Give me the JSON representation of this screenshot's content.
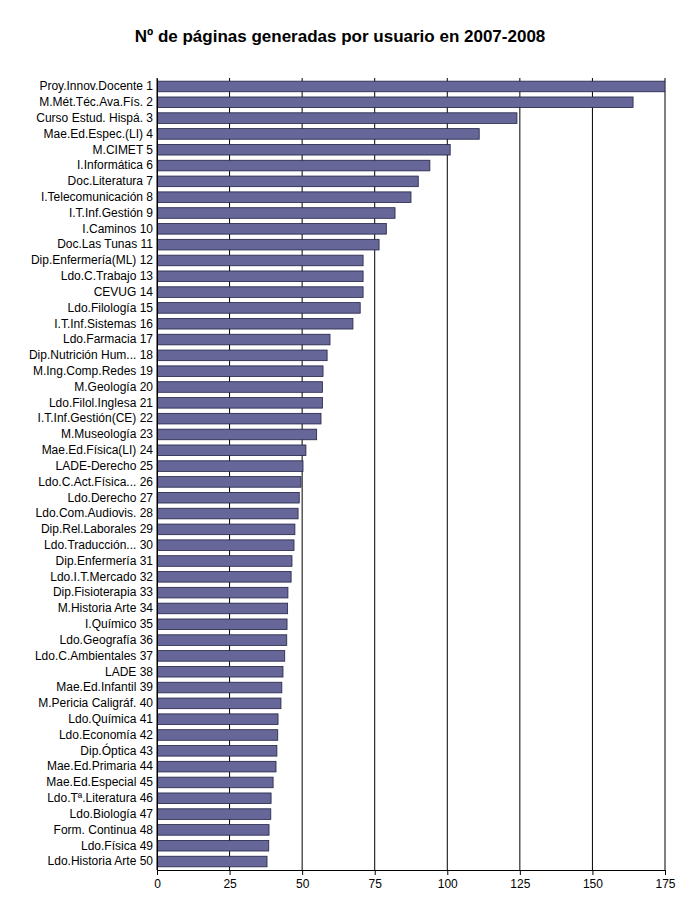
{
  "chart_data": {
    "type": "bar",
    "orientation": "horizontal",
    "title": "Nº de páginas generadas por usuario en 2007-2008",
    "categories": [
      "Proy.Innov.Docente  1",
      "M.Mét.Téc.Ava.Fís.  2",
      "Curso Estud. Hispá.  3",
      "Mae.Ed.Espec.(LI)  4",
      "M.CIMET  5",
      "I.Informática  6",
      "Doc.Literatura  7",
      "I.Telecomunicación  8",
      "I.T.Inf.Gestión  9",
      "I.Caminos 10",
      "Doc.Las Tunas 11",
      "Dip.Enfermería(ML) 12",
      "Ldo.C.Trabajo 13",
      "CEVUG 14",
      "Ldo.Filología 15",
      "I.T.Inf.Sistemas 16",
      "Ldo.Farmacia 17",
      "Dip.Nutrición Hum... 18",
      "M.Ing.Comp.Redes 19",
      "M.Geología 20",
      "Ldo.Filol.Inglesa 21",
      "I.T.Inf.Gestión(CE) 22",
      "M.Museología 23",
      "Mae.Ed.Física(LI) 24",
      "LADE-Derecho 25",
      "Ldo.C.Act.Física... 26",
      "Ldo.Derecho 27",
      "Ldo.Com.Audiovis. 28",
      "Dip.Rel.Laborales 29",
      "Ldo.Traducción... 30",
      "Dip.Enfermería 31",
      "Ldo.I.T.Mercado 32",
      "Dip.Fisioterapia 33",
      "M.Historia Arte 34",
      "I.Químico 35",
      "Ldo.Geografía 36",
      "Ldo.C.Ambientales 37",
      "LADE 38",
      "Mae.Ed.Infantil 39",
      "M.Pericia Caligráf. 40",
      "Ldo.Química 41",
      "Ldo.Economía 42",
      "Dip.Óptica 43",
      "Mae.Ed.Primaria 44",
      "Mae.Ed.Especial 45",
      "Ldo.Tª.Literatura 46",
      "Ldo.Biología 47",
      "Form. Continua 48",
      "Ldo.Física 49",
      "Ldo.Historia Arte 50"
    ],
    "values": [
      175,
      164,
      124,
      111,
      101,
      94,
      90,
      87.5,
      82,
      79,
      76.5,
      71,
      71,
      71,
      70,
      67.5,
      59.6,
      58.6,
      57.2,
      57,
      57,
      56.5,
      55,
      51.3,
      50.3,
      49.6,
      49,
      48.6,
      47.5,
      47.2,
      46.5,
      46.2,
      45.1,
      45,
      44.8,
      44.7,
      44,
      43.4,
      43,
      42.7,
      41.7,
      41.6,
      41.3,
      41,
      40,
      39.3,
      39.2,
      38.6,
      38.5,
      37.9
    ],
    "color": "#666699",
    "xlim": [
      0,
      175
    ],
    "xticks": [
      0,
      25,
      50,
      75,
      100,
      125,
      150,
      175
    ],
    "grid": true
  }
}
